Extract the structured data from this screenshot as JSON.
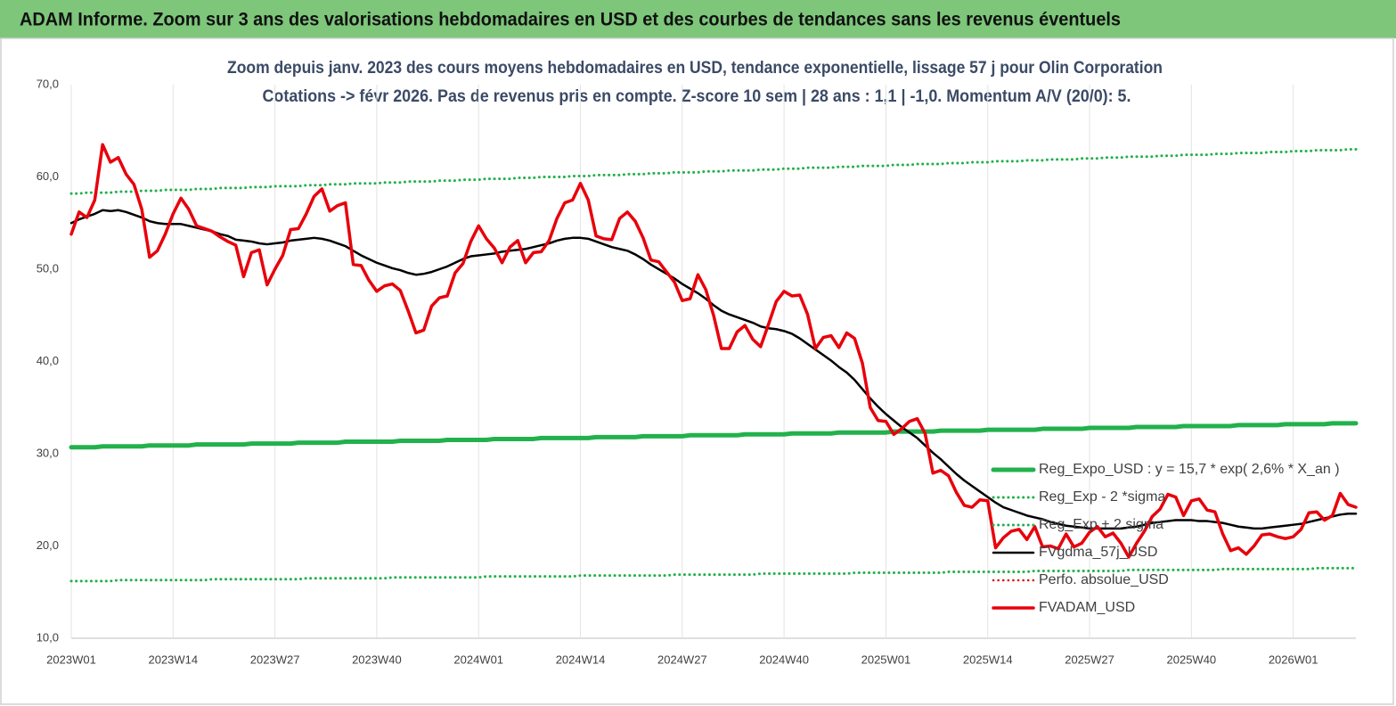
{
  "chart_data": {
    "type": "line",
    "header": "ADAM Informe. Zoom sur 3 ans des valorisations hebdomadaires en USD et des courbes de tendances sans les revenus éventuels",
    "title": "Zoom depuis janv. 2023 des cours moyens hebdomadaires en USD, tendance exponentielle, lissage 57 j pour Olin Corporation",
    "subtitle": "Cotations -> févr 2026.  Pas de revenus pris en compte. Z-score 10 sem  | 28 ans : 1,1 | -1,0. Momentum A/V (20/0): 5.",
    "ylim": [
      10,
      70
    ],
    "yticks": [
      {
        "value": 10,
        "label": "10,0"
      },
      {
        "value": 20,
        "label": "20,0"
      },
      {
        "value": 30,
        "label": "30,0"
      },
      {
        "value": 40,
        "label": "40,0"
      },
      {
        "value": 50,
        "label": "50,0"
      },
      {
        "value": 60,
        "label": "60,0"
      },
      {
        "value": 70,
        "label": "70,0"
      }
    ],
    "grid": "x",
    "legend": "right",
    "categories": [
      "2023W01",
      null,
      null,
      null,
      null,
      null,
      null,
      null,
      null,
      null,
      null,
      null,
      null,
      "2023W14",
      null,
      null,
      null,
      null,
      null,
      null,
      null,
      null,
      null,
      null,
      null,
      null,
      "2023W27",
      null,
      null,
      null,
      null,
      null,
      null,
      null,
      null,
      null,
      null,
      null,
      null,
      "2023W40",
      null,
      null,
      null,
      null,
      null,
      null,
      null,
      null,
      null,
      null,
      null,
      null,
      "2024W01",
      null,
      null,
      null,
      null,
      null,
      null,
      null,
      null,
      null,
      null,
      null,
      null,
      "2024W14",
      null,
      null,
      null,
      null,
      null,
      null,
      null,
      null,
      null,
      null,
      null,
      null,
      "2024W27",
      null,
      null,
      null,
      null,
      null,
      null,
      null,
      null,
      null,
      null,
      null,
      null,
      "2024W40",
      null,
      null,
      null,
      null,
      null,
      null,
      null,
      null,
      null,
      null,
      null,
      null,
      "2025W01",
      null,
      null,
      null,
      null,
      null,
      null,
      null,
      null,
      null,
      null,
      null,
      null,
      "2025W14",
      null,
      null,
      null,
      null,
      null,
      null,
      null,
      null,
      null,
      null,
      null,
      null,
      "2025W27",
      null,
      null,
      null,
      null,
      null,
      null,
      null,
      null,
      null,
      null,
      null,
      null,
      "2025W40",
      null,
      null,
      null,
      null,
      null,
      null,
      null,
      null,
      null,
      null,
      null,
      null,
      "2026W01",
      null,
      null,
      null,
      null,
      null,
      null,
      null,
      null
    ],
    "series": [
      {
        "name": "Reg_Expo_USD : y = 15,7 * exp( 2,6% *  X_an )",
        "color": "#22b14c",
        "style": "solid",
        "width": 5,
        "values": [
          30.7,
          30.7,
          30.7,
          30.7,
          30.8,
          30.8,
          30.8,
          30.8,
          30.8,
          30.8,
          30.9,
          30.9,
          30.9,
          30.9,
          30.9,
          30.9,
          31.0,
          31.0,
          31.0,
          31.0,
          31.0,
          31.0,
          31.0,
          31.1,
          31.1,
          31.1,
          31.1,
          31.1,
          31.1,
          31.2,
          31.2,
          31.2,
          31.2,
          31.2,
          31.2,
          31.3,
          31.3,
          31.3,
          31.3,
          31.3,
          31.3,
          31.3,
          31.4,
          31.4,
          31.4,
          31.4,
          31.4,
          31.4,
          31.5,
          31.5,
          31.5,
          31.5,
          31.5,
          31.5,
          31.6,
          31.6,
          31.6,
          31.6,
          31.6,
          31.6,
          31.7,
          31.7,
          31.7,
          31.7,
          31.7,
          31.7,
          31.7,
          31.8,
          31.8,
          31.8,
          31.8,
          31.8,
          31.8,
          31.9,
          31.9,
          31.9,
          31.9,
          31.9,
          31.9,
          32.0,
          32.0,
          32.0,
          32.0,
          32.0,
          32.0,
          32.0,
          32.1,
          32.1,
          32.1,
          32.1,
          32.1,
          32.1,
          32.2,
          32.2,
          32.2,
          32.2,
          32.2,
          32.2,
          32.3,
          32.3,
          32.3,
          32.3,
          32.3,
          32.3,
          32.3,
          32.4,
          32.4,
          32.4,
          32.4,
          32.4,
          32.4,
          32.5,
          32.5,
          32.5,
          32.5,
          32.5,
          32.5,
          32.6,
          32.6,
          32.6,
          32.6,
          32.6,
          32.6,
          32.6,
          32.7,
          32.7,
          32.7,
          32.7,
          32.7,
          32.7,
          32.8,
          32.8,
          32.8,
          32.8,
          32.8,
          32.8,
          32.9,
          32.9,
          32.9,
          32.9,
          32.9,
          32.9,
          33.0,
          33.0,
          33.0,
          33.0,
          33.0,
          33.0,
          33.0,
          33.1,
          33.1,
          33.1,
          33.1,
          33.1,
          33.1,
          33.2,
          33.2,
          33.2,
          33.2,
          33.2,
          33.2,
          33.3,
          33.3,
          33.3,
          33.3
        ]
      },
      {
        "name": "Reg_Exp - 2 *sigma",
        "color": "#22b14c",
        "style": "dotted",
        "width": 3,
        "values": [
          16.2,
          16.2,
          16.2,
          16.2,
          16.2,
          16.2,
          16.3,
          16.3,
          16.3,
          16.3,
          16.3,
          16.3,
          16.3,
          16.3,
          16.3,
          16.3,
          16.3,
          16.3,
          16.4,
          16.4,
          16.4,
          16.4,
          16.4,
          16.4,
          16.4,
          16.4,
          16.4,
          16.4,
          16.4,
          16.4,
          16.5,
          16.5,
          16.5,
          16.5,
          16.5,
          16.5,
          16.5,
          16.5,
          16.5,
          16.5,
          16.5,
          16.6,
          16.6,
          16.6,
          16.6,
          16.6,
          16.6,
          16.6,
          16.6,
          16.6,
          16.6,
          16.6,
          16.6,
          16.7,
          16.7,
          16.7,
          16.7,
          16.7,
          16.7,
          16.7,
          16.7,
          16.7,
          16.7,
          16.7,
          16.7,
          16.8,
          16.8,
          16.8,
          16.8,
          16.8,
          16.8,
          16.8,
          16.8,
          16.8,
          16.8,
          16.8,
          16.8,
          16.9,
          16.9,
          16.9,
          16.9,
          16.9,
          16.9,
          16.9,
          16.9,
          16.9,
          16.9,
          16.9,
          17.0,
          17.0,
          17.0,
          17.0,
          17.0,
          17.0,
          17.0,
          17.0,
          17.0,
          17.0,
          17.0,
          17.0,
          17.1,
          17.1,
          17.1,
          17.1,
          17.1,
          17.1,
          17.1,
          17.1,
          17.1,
          17.1,
          17.1,
          17.1,
          17.2,
          17.2,
          17.2,
          17.2,
          17.2,
          17.2,
          17.2,
          17.2,
          17.2,
          17.2,
          17.2,
          17.3,
          17.3,
          17.3,
          17.3,
          17.3,
          17.3,
          17.3,
          17.3,
          17.3,
          17.3,
          17.3,
          17.3,
          17.4,
          17.4,
          17.4,
          17.4,
          17.4,
          17.4,
          17.4,
          17.4,
          17.4,
          17.4,
          17.4,
          17.4,
          17.5,
          17.5,
          17.5,
          17.5,
          17.5,
          17.5,
          17.5,
          17.5,
          17.5,
          17.5,
          17.5,
          17.5,
          17.6,
          17.6,
          17.6,
          17.6,
          17.6,
          17.6
        ]
      },
      {
        "name": "Reg_Exp + 2 sigma",
        "color": "#22b14c",
        "style": "dotted",
        "width": 3,
        "values": [
          58.2,
          58.2,
          58.3,
          58.3,
          58.3,
          58.3,
          58.4,
          58.4,
          58.4,
          58.5,
          58.5,
          58.5,
          58.6,
          58.6,
          58.6,
          58.6,
          58.7,
          58.7,
          58.7,
          58.8,
          58.8,
          58.8,
          58.8,
          58.9,
          58.9,
          58.9,
          59.0,
          59.0,
          59.0,
          59.0,
          59.1,
          59.1,
          59.1,
          59.2,
          59.2,
          59.2,
          59.3,
          59.3,
          59.3,
          59.3,
          59.4,
          59.4,
          59.4,
          59.5,
          59.5,
          59.5,
          59.5,
          59.6,
          59.6,
          59.6,
          59.7,
          59.7,
          59.7,
          59.8,
          59.8,
          59.8,
          59.8,
          59.9,
          59.9,
          59.9,
          60.0,
          60.0,
          60.0,
          60.0,
          60.1,
          60.1,
          60.1,
          60.2,
          60.2,
          60.2,
          60.2,
          60.3,
          60.3,
          60.3,
          60.4,
          60.4,
          60.4,
          60.5,
          60.5,
          60.5,
          60.5,
          60.6,
          60.6,
          60.6,
          60.7,
          60.7,
          60.7,
          60.7,
          60.8,
          60.8,
          60.8,
          60.9,
          60.9,
          60.9,
          61.0,
          61.0,
          61.0,
          61.0,
          61.1,
          61.1,
          61.1,
          61.2,
          61.2,
          61.2,
          61.2,
          61.3,
          61.3,
          61.3,
          61.4,
          61.4,
          61.4,
          61.4,
          61.5,
          61.5,
          61.5,
          61.6,
          61.6,
          61.6,
          61.7,
          61.7,
          61.7,
          61.7,
          61.8,
          61.8,
          61.8,
          61.9,
          61.9,
          61.9,
          61.9,
          62.0,
          62.0,
          62.0,
          62.1,
          62.1,
          62.1,
          62.2,
          62.2,
          62.2,
          62.2,
          62.3,
          62.3,
          62.3,
          62.4,
          62.4,
          62.4,
          62.4,
          62.5,
          62.5,
          62.5,
          62.6,
          62.6,
          62.6,
          62.6,
          62.7,
          62.7,
          62.7,
          62.8,
          62.8,
          62.8,
          62.9,
          62.9,
          62.9,
          62.9,
          63.0,
          63.0
        ]
      },
      {
        "name": "FVgdma_57j_USD",
        "color": "#000000",
        "style": "solid",
        "width": 2.5,
        "values": [
          55.0,
          55.4,
          55.7,
          56.0,
          56.4,
          56.3,
          56.4,
          56.2,
          55.9,
          55.6,
          55.2,
          55.0,
          54.9,
          54.9,
          54.9,
          54.7,
          54.5,
          54.3,
          54.1,
          53.8,
          53.6,
          53.2,
          53.1,
          53.0,
          52.8,
          52.7,
          52.8,
          52.9,
          53.1,
          53.2,
          53.3,
          53.4,
          53.3,
          53.1,
          52.8,
          52.5,
          52.0,
          51.5,
          51.1,
          50.7,
          50.4,
          50.1,
          49.9,
          49.6,
          49.4,
          49.5,
          49.7,
          50.0,
          50.3,
          50.7,
          51.1,
          51.4,
          51.5,
          51.6,
          51.7,
          51.9,
          52.0,
          52.1,
          52.2,
          52.4,
          52.6,
          52.8,
          53.1,
          53.3,
          53.4,
          53.4,
          53.3,
          53.0,
          52.7,
          52.4,
          52.2,
          52.0,
          51.6,
          51.1,
          50.5,
          50.0,
          49.5,
          49.0,
          48.4,
          47.9,
          47.4,
          46.8,
          46.1,
          45.5,
          45.1,
          44.8,
          44.5,
          44.2,
          43.8,
          43.6,
          43.5,
          43.3,
          43.0,
          42.5,
          41.9,
          41.3,
          40.7,
          40.1,
          39.4,
          38.8,
          38.0,
          37.0,
          36.0,
          35.1,
          34.3,
          33.6,
          32.9,
          32.3,
          31.7,
          30.9,
          30.1,
          29.4,
          28.6,
          27.8,
          27.1,
          26.5,
          25.9,
          25.3,
          24.7,
          24.2,
          23.9,
          23.6,
          23.3,
          23.1,
          22.9,
          22.6,
          22.4,
          22.2,
          22.1,
          22.0,
          21.9,
          21.9,
          21.9,
          21.9,
          21.9,
          22.0,
          22.1,
          22.3,
          22.5,
          22.6,
          22.7,
          22.8,
          22.8,
          22.8,
          22.7,
          22.7,
          22.6,
          22.5,
          22.3,
          22.1,
          22.0,
          21.9,
          21.9,
          22.0,
          22.1,
          22.2,
          22.3,
          22.4,
          22.6,
          22.8,
          23.0,
          23.2,
          23.4,
          23.5,
          23.5
        ]
      },
      {
        "name": "Perfo. absolue_USD",
        "color": "#e00000",
        "style": "dotted",
        "width": 2.5,
        "values": [
          null,
          null,
          null,
          null,
          null,
          null,
          null,
          null,
          null,
          null,
          null,
          null,
          null,
          null,
          null,
          null,
          null,
          null,
          null,
          null,
          null,
          null,
          null,
          null,
          null,
          null,
          null,
          null,
          null,
          null,
          null,
          null,
          null,
          null,
          null,
          null,
          null,
          null,
          null,
          null,
          null,
          null,
          null,
          null,
          null,
          null,
          null,
          null,
          null,
          null,
          null,
          null,
          null,
          null,
          null,
          null,
          null,
          null,
          null,
          null,
          null,
          null,
          null,
          null,
          null,
          null,
          null,
          null,
          null,
          null,
          null,
          null,
          null,
          null,
          null,
          null,
          null,
          null,
          null,
          null,
          null,
          null,
          null,
          null,
          null,
          null,
          null,
          null,
          null,
          null,
          null,
          null,
          null,
          null,
          null,
          null,
          null,
          null,
          null,
          null,
          null,
          null,
          null,
          null,
          null,
          null,
          null,
          null,
          null,
          null,
          null,
          null,
          null,
          null,
          null,
          null,
          null,
          null,
          null,
          null,
          null,
          null,
          null,
          null,
          null,
          null,
          null,
          null,
          null,
          null,
          null,
          null,
          null,
          null,
          null,
          null,
          null,
          null,
          null,
          null,
          null,
          null,
          null,
          null,
          null,
          null,
          null,
          null,
          null,
          null,
          null,
          null,
          null,
          null,
          null,
          null,
          null,
          null,
          null,
          null,
          null,
          null,
          null,
          null,
          null
        ]
      },
      {
        "name": "FVADAM_USD",
        "color": "#e8000b",
        "style": "solid",
        "width": 3.5,
        "values": [
          53.8,
          56.2,
          55.6,
          57.5,
          63.5,
          61.6,
          62.1,
          60.3,
          59.2,
          56.5,
          51.3,
          52.0,
          53.8,
          56.0,
          57.7,
          56.5,
          54.7,
          54.4,
          54.1,
          53.5,
          53.0,
          52.6,
          49.2,
          51.8,
          52.1,
          48.3,
          50.0,
          51.5,
          54.3,
          54.4,
          56.0,
          57.9,
          58.7,
          56.3,
          56.9,
          57.2,
          50.5,
          50.4,
          48.8,
          47.6,
          48.2,
          48.4,
          47.7,
          45.5,
          43.1,
          43.4,
          46.0,
          46.9,
          47.1,
          49.6,
          50.6,
          53.0,
          54.7,
          53.3,
          52.3,
          50.7,
          52.4,
          53.1,
          50.7,
          51.8,
          51.9,
          53.1,
          55.5,
          57.2,
          57.5,
          59.3,
          57.5,
          53.6,
          53.3,
          53.2,
          55.5,
          56.2,
          55.2,
          53.4,
          51.0,
          50.8,
          49.7,
          48.6,
          46.6,
          46.8,
          49.4,
          47.8,
          45.0,
          41.4,
          41.4,
          43.2,
          43.9,
          42.4,
          41.6,
          44.0,
          46.5,
          47.6,
          47.1,
          47.2,
          45.1,
          41.4,
          42.6,
          42.8,
          41.5,
          43.1,
          42.5,
          39.8,
          35.0,
          33.6,
          33.5,
          32.1,
          32.7,
          33.5,
          33.8,
          32.2,
          27.9,
          28.2,
          27.6,
          25.8,
          24.4,
          24.2,
          25.0,
          24.9,
          19.8,
          20.9,
          21.6,
          21.8,
          20.7,
          22.1,
          19.9,
          20.0,
          19.7,
          21.3,
          19.9,
          20.3,
          21.5,
          22.1,
          21.0,
          21.4,
          20.3,
          18.8,
          20.3,
          21.6,
          23.2,
          24.0,
          25.6,
          25.3,
          23.3,
          24.9,
          25.1,
          23.9,
          23.7,
          21.3,
          19.5,
          19.8,
          19.1,
          20.0,
          21.2,
          21.3,
          21.0,
          20.8,
          21.0,
          21.8,
          23.6,
          23.7,
          22.8,
          23.3,
          25.7,
          24.5,
          24.2
        ]
      }
    ]
  }
}
